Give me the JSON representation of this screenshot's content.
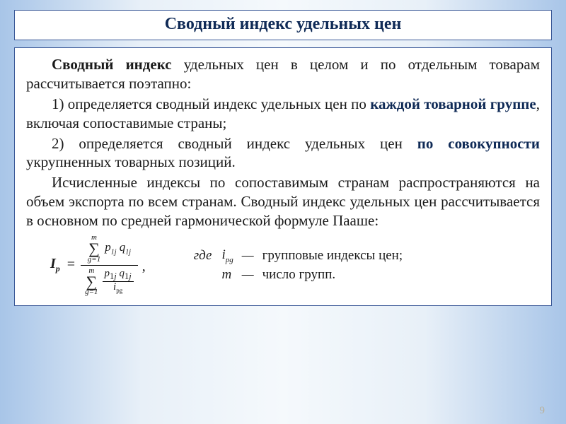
{
  "title": "Сводный индекс удельных цен",
  "intro_bold": "Сводный индекс",
  "intro_rest": " удельных цен в целом и по отдельным товарам рассчитывается поэтапно:",
  "item1_a": "1) определяется сводный индекс удельных цен по ",
  "item1_bold": "каждой товарной группе",
  "item1_b": ", включая сопоставимые страны;",
  "item2_a": "2) определяется сводный индекс удельных цен ",
  "item2_bold": "по совокупности",
  "item2_b": " укрупненных товарных позиций.",
  "para3": "Исчисленные индексы по сопоставимым странам распространяются на объем экспорта по всем странам. Сводный индекс удельных цен рассчитывается в основном по средней гармонической формуле Пааше:",
  "formula": {
    "lhs": "I",
    "lhs_sub": "p",
    "sum_top": "m",
    "sum_bot": "g=1",
    "num_term": "p₁ⱼ q₁ⱼ",
    "den_num": "p₁ⱼ q₁ⱼ",
    "den_den": "i",
    "den_den_sub": "pg"
  },
  "legend_where": "где",
  "legend_i": "i",
  "legend_i_sub": "pg",
  "legend_i_desc": "групповые индексы цен;",
  "legend_m": "m",
  "legend_m_desc": "число групп.",
  "page_number": "9",
  "colors": {
    "border": "#3b5998",
    "title_text": "#0f2a56",
    "body_text": "#1a1a1a",
    "bg_panel": "#ffffff",
    "page_num": "#b9b09a"
  }
}
